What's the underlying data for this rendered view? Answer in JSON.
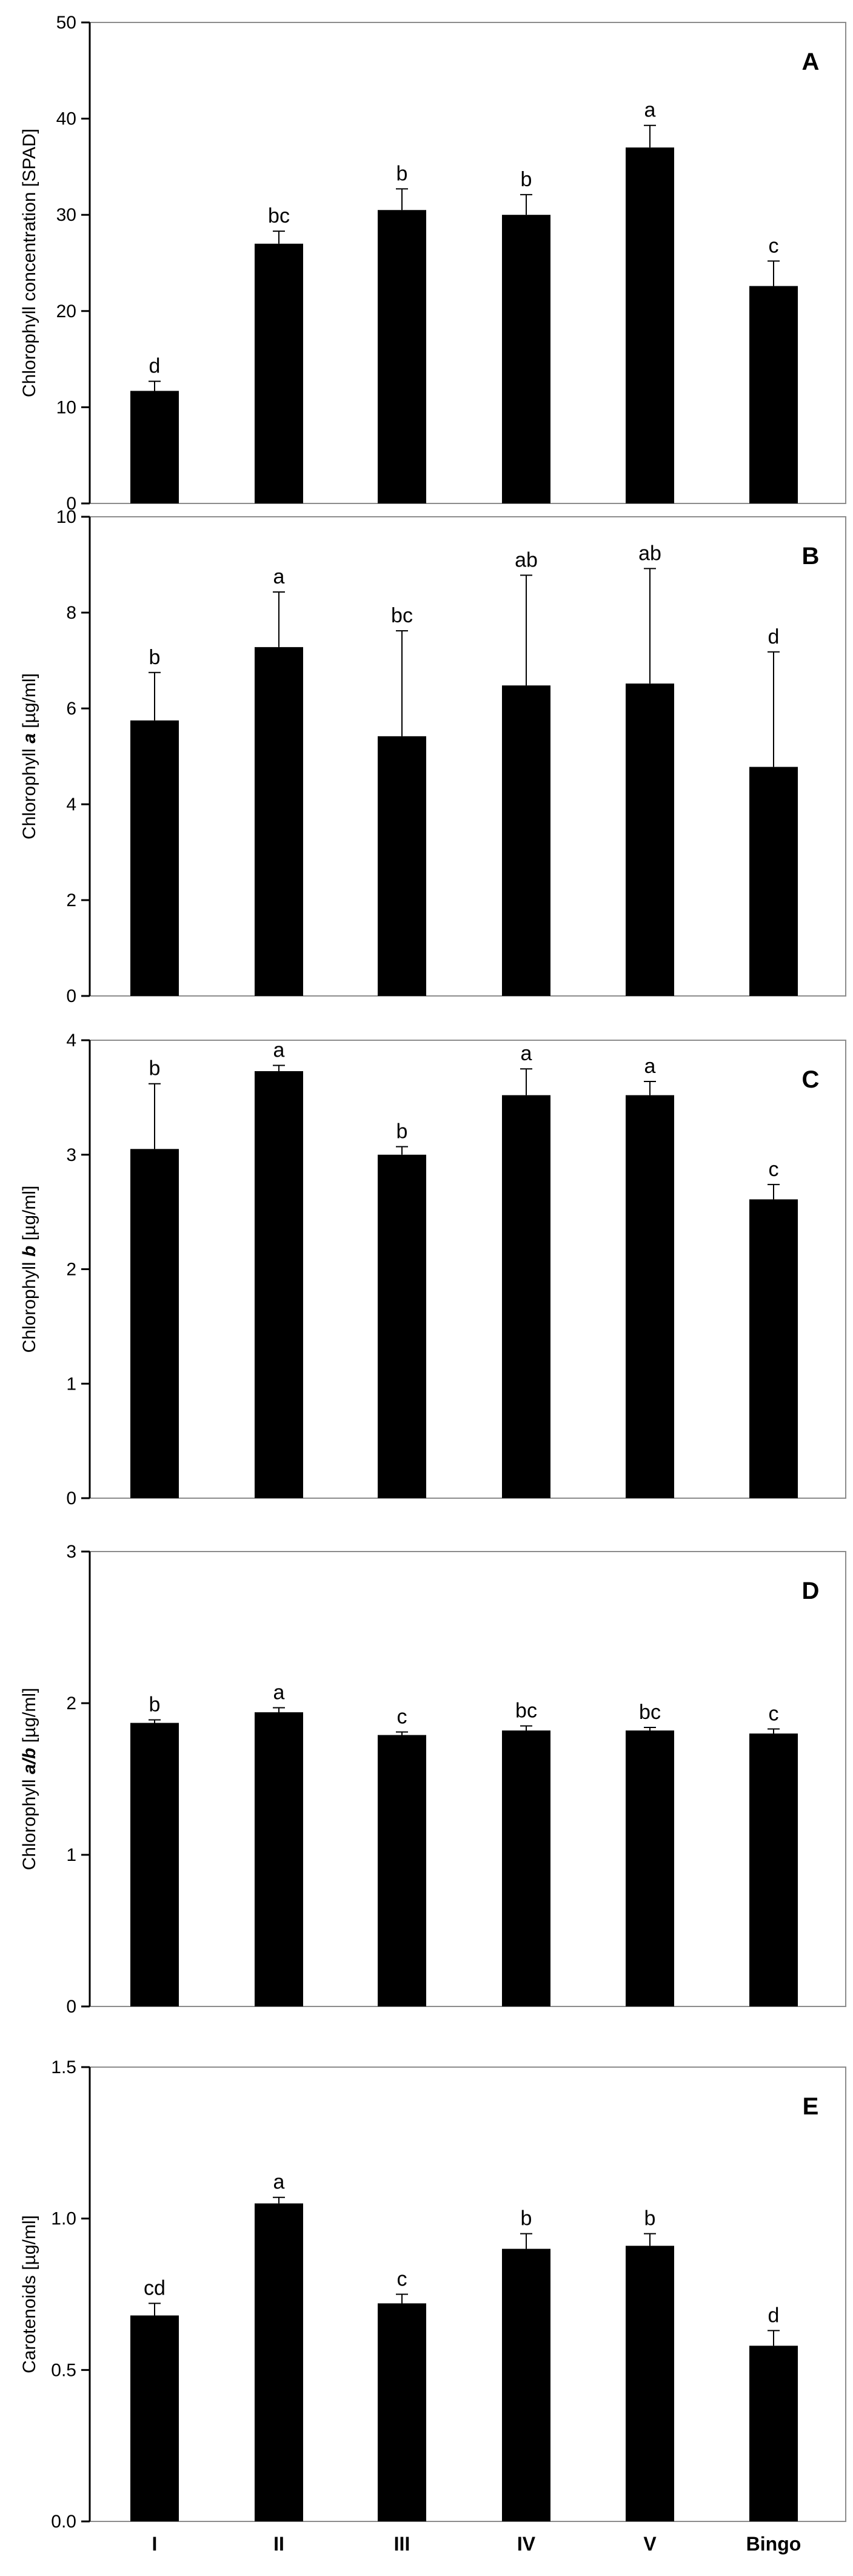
{
  "chart_data": [
    {
      "type": "bar",
      "panel": "A",
      "ylabel": "Chlorophyll concentration [SPAD]",
      "ylabel_parts": [
        {
          "text": "Chlorophyll concentration [SPAD]",
          "italic": false
        }
      ],
      "ylim": [
        0,
        50
      ],
      "yticks": [
        0,
        10,
        20,
        30,
        40,
        50
      ],
      "ytick_labels": [
        "0",
        "10",
        "20",
        "30",
        "40",
        "50"
      ],
      "grid": false,
      "categories": [
        "I",
        "II",
        "III",
        "IV",
        "V",
        "Bingo"
      ],
      "values": [
        11.7,
        27.0,
        30.5,
        30.0,
        37.0,
        22.6
      ],
      "errors": [
        1.0,
        1.3,
        2.2,
        2.1,
        2.3,
        2.6
      ],
      "labels": [
        "d",
        "bc",
        "b",
        "b",
        "a",
        "c"
      ]
    },
    {
      "type": "bar",
      "panel": "B",
      "ylabel": "Chlorophyll a [µg/ml]",
      "ylabel_parts": [
        {
          "text": "Chlorophyll ",
          "italic": false
        },
        {
          "text": "a",
          "italic": true
        },
        {
          "text": " [µg/ml]",
          "italic": false
        }
      ],
      "ylim": [
        0,
        10
      ],
      "yticks": [
        0,
        2,
        4,
        6,
        8,
        10
      ],
      "ytick_labels": [
        "0",
        "2",
        "4",
        "6",
        "8",
        "10"
      ],
      "grid": false,
      "categories": [
        "I",
        "II",
        "III",
        "IV",
        "V",
        "Bingo"
      ],
      "values": [
        5.75,
        7.28,
        5.42,
        6.48,
        6.52,
        4.78
      ],
      "errors": [
        1.0,
        1.15,
        2.2,
        2.3,
        2.4,
        2.4
      ],
      "labels": [
        "b",
        "a",
        "bc",
        "ab",
        "ab",
        "d"
      ]
    },
    {
      "type": "bar",
      "panel": "C",
      "ylabel": "Chlorophyll b [µg/ml]",
      "ylabel_parts": [
        {
          "text": "Chlorophyll ",
          "italic": false
        },
        {
          "text": "b",
          "italic": true
        },
        {
          "text": " [µg/ml]",
          "italic": false
        }
      ],
      "ylim": [
        0,
        4
      ],
      "yticks": [
        0,
        1,
        2,
        3,
        4
      ],
      "ytick_labels": [
        "0",
        "1",
        "2",
        "3",
        "4"
      ],
      "grid": false,
      "categories": [
        "I",
        "II",
        "III",
        "IV",
        "V",
        "Bingo"
      ],
      "values": [
        3.05,
        3.73,
        3.0,
        3.52,
        3.52,
        2.61
      ],
      "errors": [
        0.57,
        0.05,
        0.07,
        0.23,
        0.12,
        0.13
      ],
      "labels": [
        "b",
        "a",
        "b",
        "a",
        "a",
        "c"
      ]
    },
    {
      "type": "bar",
      "panel": "D",
      "ylabel": "Chlorophyll a/b [µg/ml]",
      "ylabel_parts": [
        {
          "text": "Chlorophyll ",
          "italic": false
        },
        {
          "text": "a/b",
          "italic": true
        },
        {
          "text": " [µg/ml]",
          "italic": false
        }
      ],
      "ylim": [
        0,
        3
      ],
      "yticks": [
        0,
        1,
        2,
        3
      ],
      "ytick_labels": [
        "0",
        "1",
        "2",
        "3"
      ],
      "grid": false,
      "categories": [
        "I",
        "II",
        "III",
        "IV",
        "V",
        "Bingo"
      ],
      "values": [
        1.87,
        1.94,
        1.79,
        1.82,
        1.82,
        1.8
      ],
      "errors": [
        0.02,
        0.03,
        0.02,
        0.03,
        0.02,
        0.03
      ],
      "labels": [
        "b",
        "a",
        "c",
        "bc",
        "bc",
        "c"
      ]
    },
    {
      "type": "bar",
      "panel": "E",
      "ylabel": "Carotenoids [µg/ml]",
      "ylabel_parts": [
        {
          "text": "Carotenoids [µg/ml]",
          "italic": false
        }
      ],
      "ylim": [
        0,
        1.5
      ],
      "yticks": [
        0,
        0.5,
        1.0,
        1.5
      ],
      "ytick_labels": [
        "0.0",
        "0.5",
        "1.0",
        "1.5"
      ],
      "grid": false,
      "categories": [
        "I",
        "II",
        "III",
        "IV",
        "V",
        "Bingo"
      ],
      "values": [
        0.68,
        1.05,
        0.72,
        0.9,
        0.91,
        0.58
      ],
      "errors": [
        0.04,
        0.02,
        0.03,
        0.05,
        0.04,
        0.05
      ],
      "labels": [
        "cd",
        "a",
        "c",
        "b",
        "b",
        "d"
      ]
    }
  ],
  "x_categories": [
    "I",
    "II",
    "III",
    "IV",
    "V",
    "Bingo"
  ]
}
